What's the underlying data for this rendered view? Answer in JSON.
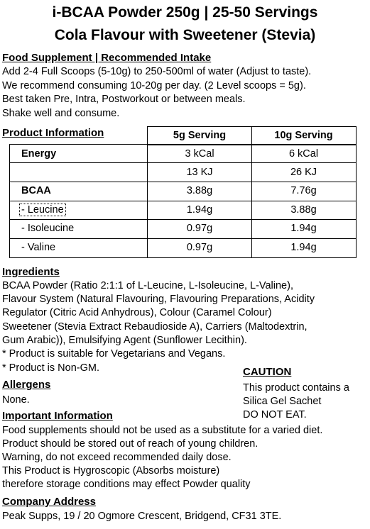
{
  "title_line1": "i-BCAA Powder 250g | 25-50 Servings",
  "title_line2": "Cola Flavour with Sweetener (Stevia)",
  "supplement": {
    "heading": "Food Supplement | Recommended Intake",
    "lines": [
      "Add 2-4 Full Scoops (5-10g) to 250-500ml of water (Adjust to taste).",
      "We recommend consuming 10-20g per day. (2 Level scoops = 5g).",
      "Best taken Pre, Intra, Postworkout or between meals.",
      "Shake well and consume."
    ]
  },
  "product_info": {
    "heading": "Product Information",
    "col1": "5g Serving",
    "col2": "10g Serving",
    "rows": [
      {
        "label": "Energy",
        "bold": true,
        "v1": "3 kCal",
        "v2": "6 kCal"
      },
      {
        "label": "",
        "bold": false,
        "v1": "13 KJ",
        "v2": "26 KJ"
      },
      {
        "label": "BCAA",
        "bold": true,
        "v1": "3.88g",
        "v2": "7.76g"
      },
      {
        "label": "- Leucine",
        "bold": false,
        "v1": "1.94g",
        "v2": "3.88g"
      },
      {
        "label": "- Isoleucine",
        "bold": false,
        "v1": "0.97g",
        "v2": "1.94g"
      },
      {
        "label": "- Valine",
        "bold": false,
        "v1": "0.97g",
        "v2": "1.94g"
      }
    ]
  },
  "ingredients": {
    "heading": "Ingredients",
    "lines": [
      "BCAA Powder (Ratio 2:1:1 of L-Leucine, L-Isoleucine, L-Valine),",
      "Flavour System (Natural Flavouring, Flavouring Preparations, Acidity",
      "Regulator (Citric Acid Anhydrous), Colour (Caramel Colour)",
      "Sweetener (Stevia Extract Rebaudioside A), Carriers (Maltodextrin,",
      "Gum Arabic)), Emulsifying Agent (Sunflower Lecithin).",
      "* Product is suitable for Vegetarians and Vegans.",
      "* Product is Non-GM."
    ]
  },
  "allergens": {
    "heading": "Allergens",
    "text": "None."
  },
  "caution": {
    "heading": "CAUTION",
    "lines": [
      "This product contains a",
      "Silica Gel Sachet",
      "DO NOT EAT."
    ]
  },
  "important": {
    "heading": "Important Information",
    "lines": [
      "Food supplements should not be used as a substitute for a varied diet.",
      "Product should be stored out of reach of young children.",
      "Warning, do not exceed recommended daily dose.",
      "This Product is Hygroscopic (Absorbs moisture)",
      "therefore storage conditions may effect Powder quality"
    ]
  },
  "company": {
    "heading": "Company Address",
    "text": "Peak Supps, 19 / 20 Ogmore Crescent, Bridgend, CF31 3TE."
  }
}
